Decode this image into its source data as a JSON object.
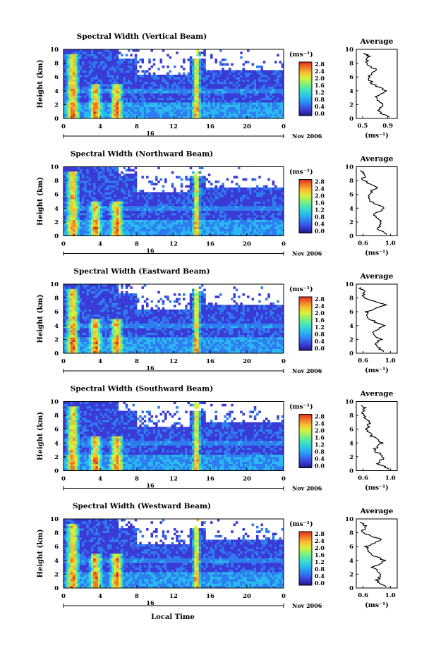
{
  "figure": {
    "xlabel": "Local Time",
    "date_label": "Nov 2006",
    "day_label": "16",
    "unit_text": "(ms⁻¹)",
    "avg_title": "Average",
    "avg_unit": "(ms⁻¹)"
  },
  "colorbar": {
    "ticks": [
      "0.0",
      "0.4",
      "0.8",
      "1.2",
      "1.6",
      "2.0",
      "2.4",
      "2.8"
    ],
    "colors": [
      "#1a1a7a",
      "#3a3ad6",
      "#2f7cf0",
      "#2ab8f0",
      "#3ce0c8",
      "#7cf07c",
      "#d8f03c",
      "#f8c030",
      "#f07828",
      "#e02c20"
    ]
  },
  "chart_data": [
    {
      "type": "heatmap",
      "title": "Spectral Width (Vertical Beam)",
      "ylabel": "Height (km)",
      "x_ticks": [
        "0",
        "4",
        "8",
        "12",
        "16",
        "20",
        "0"
      ],
      "y_ticks": [
        "0",
        "2",
        "4",
        "6",
        "8",
        "10"
      ],
      "xlim": [
        0,
        24
      ],
      "ylim": [
        0,
        10
      ],
      "value_range": [
        0.0,
        2.8
      ],
      "high_width_times_h": [
        1,
        3.5,
        5.8,
        14.5
      ],
      "average_profile": {
        "title": "Average",
        "x_ticks": [
          "0.5",
          "0.9"
        ],
        "xlim": [
          0.4,
          1.05
        ],
        "y_ticks": [
          "0",
          "2",
          "4",
          "6",
          "8",
          "10"
        ],
        "height_km": [
          0.2,
          1,
          2,
          3,
          4,
          5,
          6,
          7,
          8,
          9,
          9.6
        ],
        "width_ms": [
          0.9,
          0.75,
          0.82,
          0.7,
          0.88,
          0.65,
          0.6,
          0.72,
          0.55,
          0.6,
          0.5
        ]
      }
    },
    {
      "type": "heatmap",
      "title": "Spectral Width (Northward Beam)",
      "ylabel": "Height (km)",
      "x_ticks": [
        "0",
        "4",
        "8",
        "12",
        "16",
        "20",
        "0"
      ],
      "y_ticks": [
        "0",
        "2",
        "4",
        "6",
        "8",
        "10"
      ],
      "xlim": [
        0,
        24
      ],
      "ylim": [
        0,
        10
      ],
      "value_range": [
        0.0,
        2.8
      ],
      "high_width_times_h": [
        1,
        3.5,
        5.8,
        14.5
      ],
      "average_profile": {
        "title": "Average",
        "x_ticks": [
          "0.6",
          "1.0"
        ],
        "xlim": [
          0.5,
          1.1
        ],
        "y_ticks": [
          "0",
          "2",
          "4",
          "6",
          "8",
          "10"
        ],
        "height_km": [
          0.2,
          1,
          2,
          3,
          4,
          5,
          6,
          7,
          8,
          9,
          9.6
        ],
        "width_ms": [
          0.95,
          0.8,
          0.88,
          0.75,
          0.92,
          0.7,
          0.68,
          0.8,
          0.6,
          0.62,
          0.55
        ]
      }
    },
    {
      "type": "heatmap",
      "title": "Spectral Width (Eastward Beam)",
      "ylabel": "Height (km)",
      "x_ticks": [
        "0",
        "4",
        "8",
        "12",
        "16",
        "20",
        "0"
      ],
      "y_ticks": [
        "0",
        "2",
        "4",
        "6",
        "8",
        "10"
      ],
      "xlim": [
        0,
        24
      ],
      "ylim": [
        0,
        10
      ],
      "value_range": [
        0.0,
        2.8
      ],
      "high_width_times_h": [
        1,
        3.5,
        5.8,
        14.5
      ],
      "average_profile": {
        "title": "Average",
        "x_ticks": [
          "0.6",
          "1.0"
        ],
        "xlim": [
          0.5,
          1.1
        ],
        "y_ticks": [
          "0",
          "2",
          "4",
          "6",
          "8",
          "10"
        ],
        "height_km": [
          0.2,
          1,
          2,
          3,
          4,
          5,
          6,
          7,
          8,
          9,
          9.6
        ],
        "width_ms": [
          0.92,
          0.78,
          0.85,
          0.72,
          0.9,
          0.68,
          0.65,
          0.95,
          0.62,
          0.6,
          0.55
        ]
      }
    },
    {
      "type": "heatmap",
      "title": "Spectral Width (Southward Beam)",
      "ylabel": "Height (km)",
      "x_ticks": [
        "0",
        "4",
        "8",
        "12",
        "16",
        "20",
        "0"
      ],
      "y_ticks": [
        "0",
        "2",
        "4",
        "6",
        "8",
        "10"
      ],
      "xlim": [
        0,
        24
      ],
      "ylim": [
        0,
        10
      ],
      "value_range": [
        0.0,
        2.8
      ],
      "high_width_times_h": [
        1,
        3.5,
        5.8,
        14.5
      ],
      "average_profile": {
        "title": "Average",
        "x_ticks": [
          "0.6",
          "1.0"
        ],
        "xlim": [
          0.5,
          1.1
        ],
        "y_ticks": [
          "0",
          "2",
          "4",
          "6",
          "8",
          "10"
        ],
        "height_km": [
          0.2,
          1,
          2,
          3,
          4,
          5,
          6,
          7,
          8,
          9,
          9.6
        ],
        "width_ms": [
          0.98,
          0.82,
          0.9,
          0.76,
          0.88,
          0.72,
          0.66,
          0.7,
          0.6,
          0.62,
          0.56
        ]
      }
    },
    {
      "type": "heatmap",
      "title": "Spectral Width (Westward Beam)",
      "ylabel": "Height (km)",
      "x_ticks": [
        "0",
        "4",
        "8",
        "12",
        "16",
        "20",
        "0"
      ],
      "y_ticks": [
        "0",
        "2",
        "4",
        "6",
        "8",
        "10"
      ],
      "xlim": [
        0,
        24
      ],
      "ylim": [
        0,
        10
      ],
      "value_range": [
        0.0,
        2.8
      ],
      "high_width_times_h": [
        1,
        3.5,
        5.8,
        14.5
      ],
      "average_profile": {
        "title": "Average",
        "x_ticks": [
          "0.6",
          "1.0"
        ],
        "xlim": [
          0.5,
          1.1
        ],
        "y_ticks": [
          "0",
          "2",
          "4",
          "6",
          "8",
          "10"
        ],
        "height_km": [
          0.2,
          1,
          2,
          3,
          4,
          5,
          6,
          7,
          8,
          9,
          9.6
        ],
        "width_ms": [
          0.94,
          0.8,
          0.86,
          0.74,
          0.92,
          0.7,
          0.64,
          0.88,
          0.6,
          0.62,
          0.55
        ]
      }
    }
  ]
}
